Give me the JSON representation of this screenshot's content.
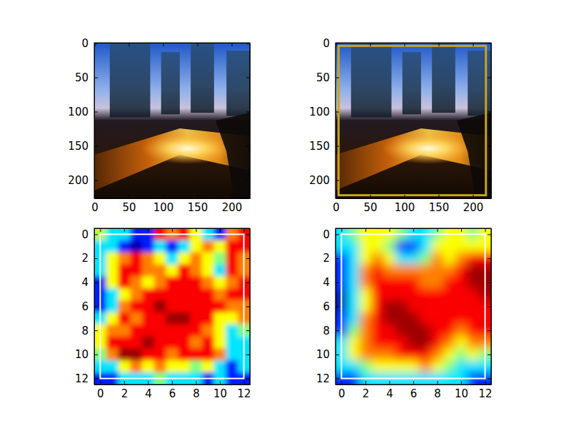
{
  "chart_data": [
    {
      "type": "image",
      "xlim": [
        -0.5,
        226.5
      ],
      "ylim": [
        226.5,
        -0.5
      ],
      "xticks": [
        0,
        50,
        100,
        150,
        200
      ],
      "yticks": [
        0,
        50,
        100,
        150,
        200
      ]
    },
    {
      "type": "image",
      "xlim": [
        -0.5,
        226.5
      ],
      "ylim": [
        226.5,
        -0.5
      ],
      "xticks": [
        0,
        50,
        100,
        150,
        200
      ],
      "yticks": [
        0,
        50,
        100,
        150,
        200
      ],
      "boxes": [
        {
          "x0": 4,
          "y0": 4,
          "x1": 219,
          "y1": 222,
          "color": "#c8a617"
        }
      ]
    },
    {
      "type": "heatmap",
      "xlim": [
        -0.5,
        12.5
      ],
      "ylim": [
        12.5,
        -0.5
      ],
      "xticks": [
        0,
        2,
        4,
        6,
        8,
        10,
        12
      ],
      "yticks": [
        0,
        2,
        4,
        6,
        8,
        10,
        12
      ],
      "zlim": [
        0,
        1
      ],
      "cells": [
        [
          0.55,
          0.35,
          0.35,
          0.15,
          0.15,
          0.88,
          0.75,
          0.88,
          0.62,
          0.35,
          0.15,
          0.75,
          0.88
        ],
        [
          0.35,
          0.35,
          0.15,
          0.05,
          0.15,
          0.35,
          0.15,
          0.35,
          0.62,
          0.75,
          0.62,
          0.88,
          0.88
        ],
        [
          0.35,
          0.62,
          0.75,
          0.88,
          0.75,
          0.62,
          0.35,
          0.62,
          0.75,
          0.62,
          0.5,
          0.88,
          0.75
        ],
        [
          0.35,
          0.62,
          0.88,
          0.88,
          0.75,
          0.75,
          0.62,
          0.88,
          0.75,
          0.62,
          0.35,
          0.88,
          0.75
        ],
        [
          0.15,
          0.62,
          0.88,
          0.75,
          0.62,
          0.75,
          0.88,
          0.88,
          0.88,
          0.75,
          0.62,
          0.75,
          0.88
        ],
        [
          0.15,
          0.35,
          0.62,
          0.75,
          0.88,
          0.88,
          0.88,
          0.88,
          0.88,
          0.88,
          0.75,
          0.88,
          0.88
        ],
        [
          0.15,
          0.35,
          0.75,
          0.88,
          0.88,
          0.97,
          0.88,
          0.88,
          0.88,
          0.88,
          0.88,
          0.75,
          0.75
        ],
        [
          0.35,
          0.62,
          0.88,
          0.75,
          0.88,
          0.88,
          0.97,
          0.97,
          0.88,
          0.88,
          0.62,
          0.62,
          0.75
        ],
        [
          0.62,
          0.75,
          0.75,
          0.88,
          0.88,
          0.88,
          0.88,
          0.88,
          0.88,
          0.75,
          0.62,
          0.35,
          0.5
        ],
        [
          0.62,
          0.88,
          0.88,
          0.88,
          0.97,
          0.88,
          0.88,
          0.88,
          0.75,
          0.88,
          0.62,
          0.35,
          0.35
        ],
        [
          0.5,
          0.75,
          0.97,
          0.97,
          0.88,
          0.88,
          0.75,
          0.88,
          0.88,
          0.88,
          0.75,
          0.35,
          0.35
        ],
        [
          0.35,
          0.35,
          0.62,
          0.75,
          0.62,
          0.75,
          0.62,
          0.62,
          0.5,
          0.62,
          0.35,
          0.15,
          0.35
        ],
        [
          0.15,
          0.15,
          0.35,
          0.35,
          0.35,
          0.5,
          0.35,
          0.35,
          0.35,
          0.15,
          0.35,
          0.15,
          0.15
        ]
      ],
      "boxes": [
        {
          "x0": 0,
          "y0": 0,
          "x1": 12,
          "y1": 12,
          "color": "#ffffff"
        }
      ]
    },
    {
      "type": "heatmap",
      "xlim": [
        -0.5,
        12.5
      ],
      "ylim": [
        12.5,
        -0.5
      ],
      "xticks": [
        0,
        2,
        4,
        6,
        8,
        10,
        12
      ],
      "yticks": [
        0,
        2,
        4,
        6,
        8,
        10,
        12
      ],
      "zlim": [
        0,
        1
      ],
      "cells": [
        [
          0.35,
          0.5,
          0.62,
          0.62,
          0.62,
          0.5,
          0.35,
          0.35,
          0.5,
          0.62,
          0.62,
          0.5,
          0.62
        ],
        [
          0.35,
          0.35,
          0.62,
          0.62,
          0.5,
          0.15,
          0.15,
          0.35,
          0.62,
          0.62,
          0.62,
          0.62,
          0.62
        ],
        [
          0.15,
          0.35,
          0.62,
          0.75,
          0.62,
          0.35,
          0.35,
          0.5,
          0.75,
          0.62,
          0.75,
          0.88,
          0.88
        ],
        [
          0.15,
          0.35,
          0.75,
          0.88,
          0.75,
          0.75,
          0.75,
          0.75,
          0.75,
          0.75,
          0.88,
          0.97,
          0.97
        ],
        [
          0.15,
          0.35,
          0.75,
          0.88,
          0.88,
          0.88,
          0.88,
          0.75,
          0.75,
          0.88,
          0.88,
          0.97,
          0.97
        ],
        [
          0.05,
          0.35,
          0.62,
          0.88,
          0.88,
          0.88,
          0.88,
          0.88,
          0.88,
          0.88,
          0.88,
          0.88,
          0.97
        ],
        [
          0.05,
          0.35,
          0.62,
          0.88,
          0.97,
          0.97,
          0.88,
          0.88,
          0.88,
          0.88,
          0.88,
          0.88,
          0.88
        ],
        [
          0.15,
          0.35,
          0.75,
          0.88,
          0.97,
          0.97,
          0.97,
          0.88,
          0.88,
          0.88,
          0.88,
          0.88,
          0.88
        ],
        [
          0.15,
          0.5,
          0.75,
          0.88,
          0.88,
          0.97,
          0.97,
          0.97,
          0.88,
          0.88,
          0.75,
          0.88,
          0.88
        ],
        [
          0.35,
          0.62,
          0.75,
          0.88,
          0.88,
          0.88,
          0.97,
          0.97,
          0.88,
          0.75,
          0.62,
          0.75,
          0.75
        ],
        [
          0.35,
          0.62,
          0.75,
          0.75,
          0.75,
          0.88,
          0.88,
          0.88,
          0.75,
          0.62,
          0.5,
          0.62,
          0.5
        ],
        [
          0.35,
          0.35,
          0.5,
          0.62,
          0.62,
          0.62,
          0.62,
          0.75,
          0.62,
          0.5,
          0.35,
          0.35,
          0.35
        ],
        [
          0.15,
          0.15,
          0.35,
          0.35,
          0.35,
          0.35,
          0.35,
          0.35,
          0.35,
          0.35,
          0.35,
          0.15,
          0.15
        ]
      ],
      "boxes": [
        {
          "x0": 0,
          "y0": 0,
          "x1": 12,
          "y1": 12,
          "color": "#ffffff"
        }
      ]
    }
  ]
}
